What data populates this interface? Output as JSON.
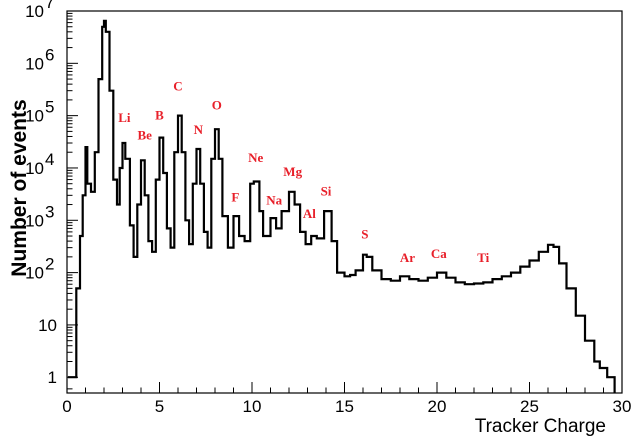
{
  "chart_data": {
    "type": "line",
    "title": "",
    "xlabel": "Tracker Charge",
    "ylabel": "Number of events",
    "xlim": [
      0,
      30
    ],
    "ylim": [
      0.5,
      10000000
    ],
    "y_scale": "log",
    "grid": false,
    "legend": "none",
    "line_color": "#000000",
    "annotation_color": "#e8202a",
    "x_ticks": [
      0,
      5,
      10,
      15,
      20,
      25,
      30
    ],
    "y_ticks": [
      {
        "value": 1,
        "label": "1"
      },
      {
        "value": 10,
        "label": "10"
      },
      {
        "value": 100,
        "label": "10",
        "exp": "2"
      },
      {
        "value": 1000,
        "label": "10",
        "exp": "3"
      },
      {
        "value": 10000,
        "label": "10",
        "exp": "4"
      },
      {
        "value": 100000,
        "label": "10",
        "exp": "5"
      },
      {
        "value": 1000000,
        "label": "10",
        "exp": "6"
      },
      {
        "value": 10000000,
        "label": "10",
        "exp": "7"
      }
    ],
    "series": [
      {
        "points": [
          [
            0.05,
            1
          ],
          [
            0.15,
            1
          ],
          [
            0.3,
            1
          ],
          [
            0.5,
            50
          ],
          [
            0.7,
            500
          ],
          [
            0.85,
            3000
          ],
          [
            1.0,
            25000
          ],
          [
            1.1,
            5000
          ],
          [
            1.3,
            3500
          ],
          [
            1.5,
            20000
          ],
          [
            1.7,
            500000
          ],
          [
            1.9,
            5000000
          ],
          [
            2.0,
            6500000
          ],
          [
            2.1,
            4000000
          ],
          [
            2.3,
            300000
          ],
          [
            2.5,
            6000
          ],
          [
            2.7,
            2000
          ],
          [
            2.85,
            10000
          ],
          [
            3.0,
            30000
          ],
          [
            3.15,
            15000
          ],
          [
            3.4,
            800
          ],
          [
            3.6,
            200
          ],
          [
            3.8,
            2000
          ],
          [
            4.0,
            14000
          ],
          [
            4.2,
            3000
          ],
          [
            4.4,
            400
          ],
          [
            4.6,
            250
          ],
          [
            4.8,
            6000
          ],
          [
            5.0,
            38000
          ],
          [
            5.2,
            8000
          ],
          [
            5.4,
            700
          ],
          [
            5.6,
            300
          ],
          [
            5.8,
            20000
          ],
          [
            6.0,
            100000
          ],
          [
            6.2,
            20000
          ],
          [
            6.4,
            1000
          ],
          [
            6.6,
            350
          ],
          [
            6.8,
            5000
          ],
          [
            7.0,
            23000
          ],
          [
            7.2,
            5000
          ],
          [
            7.4,
            600
          ],
          [
            7.6,
            300
          ],
          [
            7.8,
            15000
          ],
          [
            8.0,
            55000
          ],
          [
            8.2,
            15000
          ],
          [
            8.4,
            1200
          ],
          [
            8.7,
            300
          ],
          [
            9.0,
            1200
          ],
          [
            9.3,
            500
          ],
          [
            9.6,
            400
          ],
          [
            9.9,
            5000
          ],
          [
            10.1,
            5500
          ],
          [
            10.4,
            1500
          ],
          [
            10.6,
            500
          ],
          [
            11.0,
            1100
          ],
          [
            11.3,
            700
          ],
          [
            11.6,
            1500
          ],
          [
            12.0,
            3500
          ],
          [
            12.3,
            2000
          ],
          [
            12.6,
            600
          ],
          [
            12.9,
            350
          ],
          [
            13.2,
            500
          ],
          [
            13.5,
            450
          ],
          [
            13.9,
            1500
          ],
          [
            14.0,
            1500
          ],
          [
            14.3,
            400
          ],
          [
            14.6,
            100
          ],
          [
            15.0,
            85
          ],
          [
            15.3,
            90
          ],
          [
            15.6,
            110
          ],
          [
            16.0,
            220
          ],
          [
            16.2,
            200
          ],
          [
            16.5,
            110
          ],
          [
            17.0,
            75
          ],
          [
            17.5,
            70
          ],
          [
            18.0,
            85
          ],
          [
            18.5,
            75
          ],
          [
            19.0,
            70
          ],
          [
            19.5,
            80
          ],
          [
            20.0,
            100
          ],
          [
            20.5,
            80
          ],
          [
            21.0,
            65
          ],
          [
            21.5,
            60
          ],
          [
            22.0,
            62
          ],
          [
            22.5,
            65
          ],
          [
            23.0,
            75
          ],
          [
            23.5,
            85
          ],
          [
            24.0,
            100
          ],
          [
            24.5,
            130
          ],
          [
            25.0,
            170
          ],
          [
            25.5,
            250
          ],
          [
            26.0,
            340
          ],
          [
            26.3,
            310
          ],
          [
            26.6,
            150
          ],
          [
            27.0,
            50
          ],
          [
            27.5,
            15
          ],
          [
            28.0,
            5
          ],
          [
            28.5,
            2
          ],
          [
            28.8,
            1.5
          ],
          [
            29.2,
            1
          ],
          [
            29.6,
            0.5
          ]
        ]
      }
    ],
    "annotations": [
      {
        "text": "Li",
        "x": 3.1,
        "y": 75000
      },
      {
        "text": "Be",
        "x": 4.2,
        "y": 35000
      },
      {
        "text": "B",
        "x": 5.0,
        "y": 85000
      },
      {
        "text": "C",
        "x": 6.0,
        "y": 300000
      },
      {
        "text": "N",
        "x": 7.1,
        "y": 45000
      },
      {
        "text": "O",
        "x": 8.1,
        "y": 130000
      },
      {
        "text": "F",
        "x": 9.1,
        "y": 2300
      },
      {
        "text": "Ne",
        "x": 10.2,
        "y": 13000
      },
      {
        "text": "Na",
        "x": 11.2,
        "y": 2000
      },
      {
        "text": "Mg",
        "x": 12.2,
        "y": 7000
      },
      {
        "text": "Al",
        "x": 13.1,
        "y": 1100
      },
      {
        "text": "Si",
        "x": 14.0,
        "y": 3000
      },
      {
        "text": "S",
        "x": 16.1,
        "y": 450
      },
      {
        "text": "Ar",
        "x": 18.4,
        "y": 160
      },
      {
        "text": "Ca",
        "x": 20.1,
        "y": 190
      },
      {
        "text": "Ti",
        "x": 22.5,
        "y": 160
      }
    ]
  }
}
